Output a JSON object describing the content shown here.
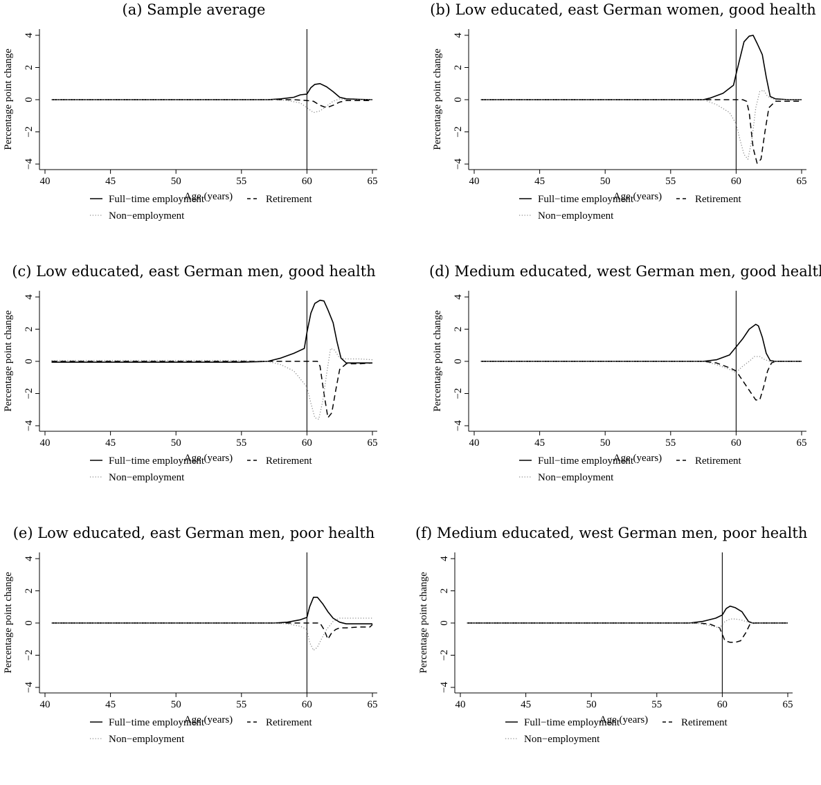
{
  "legend": {
    "full_time": "Full−time employment",
    "retirement": "Retirement",
    "non_employment": "Non−employment"
  },
  "chart_data": [
    {
      "type": "line",
      "title": "(a) Sample average",
      "xlabel": "Age (years)",
      "ylabel": "Percentage point change",
      "xlim": [
        40,
        65
      ],
      "ylim": [
        -4,
        4
      ],
      "xticks": [
        40,
        45,
        50,
        55,
        60,
        65
      ],
      "yticks": [
        -4,
        -2,
        0,
        2,
        4
      ],
      "vline": 60,
      "grid": false,
      "legend_position": "bottom",
      "series": [
        {
          "name": "Full−time employment",
          "style": "solid",
          "x": [
            40.5,
            45,
            50,
            55,
            57,
            58,
            59,
            59.5,
            60,
            60.3,
            60.6,
            61,
            61.5,
            62,
            62.5,
            63,
            64,
            65
          ],
          "y": [
            0,
            0,
            0,
            0,
            0,
            0.05,
            0.15,
            0.3,
            0.35,
            0.75,
            0.95,
            1.0,
            0.8,
            0.5,
            0.15,
            0.05,
            0.02,
            0
          ]
        },
        {
          "name": "Retirement",
          "style": "dashed",
          "x": [
            40.5,
            45,
            50,
            55,
            58,
            59,
            60,
            60.5,
            61,
            61.5,
            62,
            62.5,
            63,
            64,
            65
          ],
          "y": [
            0,
            0,
            0,
            0,
            0,
            0,
            -0.05,
            -0.1,
            -0.35,
            -0.5,
            -0.35,
            -0.15,
            -0.05,
            -0.05,
            -0.05
          ]
        },
        {
          "name": "Non−employment",
          "style": "dotted",
          "x": [
            40.5,
            45,
            50,
            55,
            57.5,
            58.5,
            59.5,
            60,
            60.5,
            61,
            61.5,
            62,
            62.5,
            63,
            64,
            65
          ],
          "y": [
            0,
            0,
            0,
            0,
            0,
            -0.05,
            -0.2,
            -0.5,
            -0.8,
            -0.7,
            -0.4,
            -0.1,
            0.05,
            0,
            0,
            0
          ]
        }
      ]
    },
    {
      "type": "line",
      "title": "(b) Low educated, east German women, good health",
      "xlabel": "Age (years)",
      "ylabel": "Percentage point change",
      "xlim": [
        40,
        65
      ],
      "ylim": [
        -4,
        4
      ],
      "xticks": [
        40,
        45,
        50,
        55,
        60,
        65
      ],
      "yticks": [
        -4,
        -2,
        0,
        2,
        4
      ],
      "vline": 60,
      "grid": false,
      "legend_position": "bottom",
      "series": [
        {
          "name": "Full−time employment",
          "style": "solid",
          "x": [
            40.5,
            45,
            50,
            55,
            57.5,
            58,
            59,
            59.8,
            60,
            60.3,
            60.6,
            61,
            61.3,
            61.6,
            62,
            62.3,
            62.6,
            63,
            64,
            65
          ],
          "y": [
            0,
            0,
            0,
            0,
            0,
            0.1,
            0.4,
            0.9,
            1.6,
            2.6,
            3.6,
            3.95,
            4.0,
            3.5,
            2.8,
            1.4,
            0.2,
            0.05,
            0,
            0
          ]
        },
        {
          "name": "Retirement",
          "style": "dashed",
          "x": [
            40.5,
            45,
            50,
            55,
            58,
            59,
            60,
            60.5,
            60.8,
            61,
            61.3,
            61.6,
            61.9,
            62.2,
            62.5,
            63,
            64,
            65
          ],
          "y": [
            0,
            0,
            0,
            0,
            0,
            0,
            0,
            0,
            -0.1,
            -0.8,
            -3.0,
            -3.95,
            -3.7,
            -2.0,
            -0.5,
            -0.1,
            -0.1,
            -0.1
          ]
        },
        {
          "name": "Non−employment",
          "style": "dotted",
          "x": [
            40.5,
            45,
            50,
            55,
            57.5,
            58.5,
            59.5,
            60,
            60.3,
            60.6,
            60.9,
            61.2,
            61.5,
            61.8,
            62.1,
            62.4,
            63,
            64,
            65
          ],
          "y": [
            0,
            0,
            0,
            0,
            0,
            -0.3,
            -0.8,
            -1.5,
            -2.5,
            -3.4,
            -3.7,
            -2.5,
            -0.5,
            0.5,
            0.6,
            0.2,
            0,
            0,
            0
          ]
        }
      ]
    },
    {
      "type": "line",
      "title": "(c) Low educated, east German men, good health",
      "xlabel": "Age (years)",
      "ylabel": "Percentage point change",
      "xlim": [
        40,
        65
      ],
      "ylim": [
        -4,
        4
      ],
      "xticks": [
        40,
        45,
        50,
        55,
        60,
        65
      ],
      "yticks": [
        -4,
        -2,
        0,
        2,
        4
      ],
      "vline": 60,
      "grid": false,
      "legend_position": "bottom",
      "series": [
        {
          "name": "Full−time employment",
          "style": "solid",
          "x": [
            40.5,
            45,
            50,
            55,
            57,
            58,
            59,
            59.8,
            60,
            60.3,
            60.6,
            61,
            61.3,
            61.6,
            62,
            62.3,
            62.6,
            63,
            64,
            65
          ],
          "y": [
            -0.05,
            -0.05,
            -0.05,
            -0.05,
            0,
            0.2,
            0.5,
            0.8,
            1.8,
            3.0,
            3.6,
            3.8,
            3.75,
            3.2,
            2.4,
            1.2,
            0.2,
            -0.1,
            -0.1,
            -0.1
          ]
        },
        {
          "name": "Retirement",
          "style": "dashed",
          "x": [
            40.5,
            45,
            50,
            55,
            58,
            59,
            60,
            60.8,
            61,
            61.3,
            61.6,
            61.9,
            62.2,
            62.5,
            63,
            64,
            65
          ],
          "y": [
            0,
            0,
            0,
            0,
            0,
            0,
            0,
            0,
            -0.3,
            -2.0,
            -3.5,
            -3.2,
            -1.8,
            -0.5,
            -0.15,
            -0.15,
            -0.1
          ]
        },
        {
          "name": "Non−employment",
          "style": "dotted",
          "x": [
            40.5,
            45,
            50,
            55,
            57,
            58,
            59,
            60,
            60.3,
            60.6,
            60.9,
            61.2,
            61.5,
            61.8,
            62.1,
            62.5,
            63,
            64,
            65
          ],
          "y": [
            0.05,
            0.05,
            0.05,
            0.05,
            0,
            -0.2,
            -0.6,
            -1.6,
            -2.6,
            -3.5,
            -3.6,
            -2.5,
            -0.8,
            0.8,
            0.7,
            0.2,
            0.15,
            0.15,
            0.1
          ]
        }
      ]
    },
    {
      "type": "line",
      "title": "(d) Medium educated, west German men, good health",
      "xlabel": "Age (years)",
      "ylabel": "Percentage point change",
      "xlim": [
        40,
        65
      ],
      "ylim": [
        -4,
        4
      ],
      "xticks": [
        40,
        45,
        50,
        55,
        60,
        65
      ],
      "yticks": [
        -4,
        -2,
        0,
        2,
        4
      ],
      "vline": 60,
      "grid": false,
      "legend_position": "bottom",
      "series": [
        {
          "name": "Full−time employment",
          "style": "solid",
          "x": [
            40.5,
            45,
            50,
            55,
            57.5,
            58.5,
            59.5,
            60,
            60.5,
            61,
            61.5,
            61.7,
            62,
            62.3,
            62.6,
            63,
            64,
            65
          ],
          "y": [
            0,
            0,
            0,
            0,
            0,
            0.1,
            0.4,
            0.9,
            1.4,
            2.0,
            2.3,
            2.2,
            1.5,
            0.5,
            0.05,
            0,
            0,
            0
          ]
        },
        {
          "name": "Retirement",
          "style": "dashed",
          "x": [
            40.5,
            45,
            50,
            55,
            57.5,
            58.5,
            59.5,
            60,
            60.5,
            61,
            61.5,
            61.8,
            62.1,
            62.4,
            62.7,
            63,
            64,
            65
          ],
          "y": [
            0,
            0,
            0,
            0,
            0,
            -0.1,
            -0.4,
            -0.6,
            -1.2,
            -1.8,
            -2.4,
            -2.4,
            -1.6,
            -0.6,
            -0.1,
            0,
            0,
            0
          ]
        },
        {
          "name": "Non−employment",
          "style": "dotted",
          "x": [
            40.5,
            45,
            50,
            55,
            57.5,
            58.5,
            59.5,
            60,
            60.5,
            61,
            61.4,
            61.8,
            62.2,
            62.6,
            63,
            64,
            65
          ],
          "y": [
            0,
            0,
            0,
            0,
            0,
            -0.2,
            -0.5,
            -0.7,
            -0.3,
            0,
            0.3,
            0.3,
            0.1,
            0,
            0,
            0,
            0
          ]
        }
      ]
    },
    {
      "type": "line",
      "title": "(e) Low educated, east German men, poor health",
      "xlabel": "Age (years)",
      "ylabel": "Percentage point change",
      "xlim": [
        40,
        65
      ],
      "ylim": [
        -4,
        4
      ],
      "xticks": [
        40,
        45,
        50,
        55,
        60,
        65
      ],
      "yticks": [
        -4,
        -2,
        0,
        2,
        4
      ],
      "vline": 60,
      "grid": false,
      "legend_position": "bottom",
      "series": [
        {
          "name": "Full−time employment",
          "style": "solid",
          "x": [
            40.5,
            45,
            50,
            55,
            57.5,
            58.5,
            59.5,
            60,
            60.2,
            60.5,
            60.8,
            61.2,
            61.6,
            62,
            62.5,
            63,
            64,
            65
          ],
          "y": [
            0,
            0,
            0,
            0,
            0,
            0.05,
            0.2,
            0.35,
            1.0,
            1.6,
            1.6,
            1.2,
            0.7,
            0.3,
            0.05,
            -0.05,
            -0.05,
            -0.05
          ]
        },
        {
          "name": "Retirement",
          "style": "dashed",
          "x": [
            40.5,
            45,
            50,
            55,
            58,
            59,
            60,
            61,
            61.3,
            61.6,
            61.9,
            62.2,
            62.5,
            63,
            64,
            64.8,
            65
          ],
          "y": [
            0,
            0,
            0,
            0,
            0,
            0,
            0,
            0,
            -0.4,
            -1.0,
            -0.6,
            -0.4,
            -0.3,
            -0.3,
            -0.25,
            -0.25,
            -0.1
          ]
        },
        {
          "name": "Non−employment",
          "style": "dotted",
          "x": [
            40.5,
            45,
            50,
            55,
            57.5,
            58.5,
            59.5,
            60,
            60.2,
            60.5,
            60.8,
            61.1,
            61.5,
            62,
            62.5,
            63,
            64,
            65
          ],
          "y": [
            0,
            0,
            0,
            0,
            0,
            -0.05,
            -0.2,
            -0.4,
            -1.2,
            -1.7,
            -1.5,
            -1.0,
            -0.4,
            0.1,
            0.3,
            0.3,
            0.3,
            0.3
          ]
        }
      ]
    },
    {
      "type": "line",
      "title": "(f) Medium educated, west German men, poor health",
      "xlabel": "Age (years)",
      "ylabel": "Percentage point change",
      "xlim": [
        40,
        65
      ],
      "ylim": [
        -4,
        4
      ],
      "xticks": [
        40,
        45,
        50,
        55,
        60,
        65
      ],
      "yticks": [
        -4,
        -2,
        0,
        2,
        4
      ],
      "vline": 60,
      "grid": false,
      "legend_position": "bottom",
      "series": [
        {
          "name": "Full−time employment",
          "style": "solid",
          "x": [
            40.5,
            45,
            50,
            55,
            57.5,
            58.5,
            59.5,
            60,
            60.3,
            60.6,
            61,
            61.5,
            62,
            62.3,
            63,
            64,
            65
          ],
          "y": [
            0,
            0,
            0,
            0,
            0,
            0.1,
            0.3,
            0.5,
            0.9,
            1.05,
            0.95,
            0.7,
            0.1,
            0,
            0,
            0,
            0
          ]
        },
        {
          "name": "Retirement",
          "style": "dashed",
          "x": [
            40.5,
            45,
            50,
            55,
            58,
            59,
            59.8,
            60.2,
            60.6,
            61,
            61.4,
            61.8,
            62.1,
            62.5,
            63,
            64,
            65
          ],
          "y": [
            0,
            0,
            0,
            0,
            0,
            -0.05,
            -0.3,
            -1.1,
            -1.2,
            -1.2,
            -1.1,
            -0.6,
            -0.1,
            0,
            0,
            0,
            0
          ]
        },
        {
          "name": "Non−employment",
          "style": "dotted",
          "x": [
            40.5,
            45,
            50,
            55,
            58,
            59,
            59.8,
            60.2,
            60.6,
            61,
            61.4,
            61.8,
            62.2,
            62.6,
            63,
            64,
            65
          ],
          "y": [
            0,
            0,
            0,
            0,
            0,
            -0.15,
            -0.3,
            0.1,
            0.25,
            0.25,
            0.2,
            0.1,
            0,
            0,
            0,
            0,
            0
          ]
        }
      ]
    }
  ]
}
